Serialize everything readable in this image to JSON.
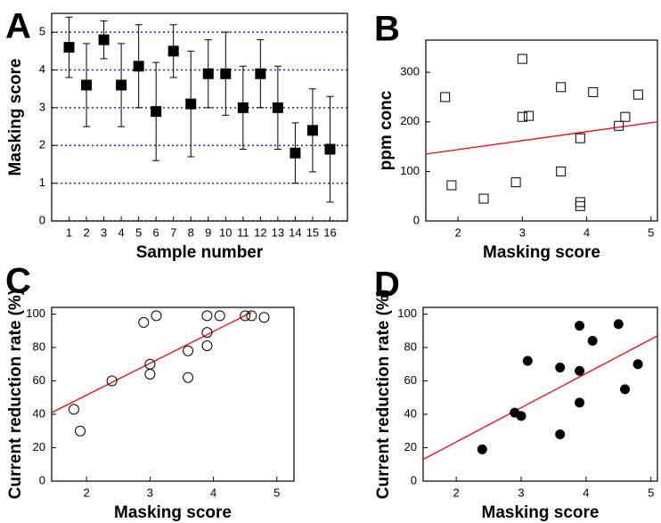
{
  "chart_data": [
    {
      "type": "errorbar",
      "panel_label": "A",
      "xlabel": "Sample number",
      "ylabel": "Masking score",
      "x": [
        1,
        2,
        3,
        4,
        5,
        6,
        7,
        8,
        9,
        10,
        11,
        12,
        13,
        14,
        15,
        16
      ],
      "values": [
        4.6,
        3.6,
        4.8,
        3.6,
        4.1,
        2.9,
        4.5,
        3.1,
        3.9,
        3.9,
        3.0,
        3.9,
        3.0,
        1.8,
        2.4,
        1.9
      ],
      "errors": [
        0.8,
        1.1,
        0.5,
        1.1,
        1.1,
        1.3,
        0.7,
        1.4,
        0.9,
        1.1,
        1.1,
        0.9,
        1.1,
        0.8,
        1.1,
        1.4
      ],
      "marker": "square-filled",
      "color": "#000000",
      "xlim": [
        0,
        17
      ],
      "xticks": [
        1,
        2,
        3,
        4,
        5,
        6,
        7,
        8,
        9,
        10,
        11,
        12,
        13,
        14,
        15,
        16
      ],
      "ylim": [
        0,
        5.5
      ],
      "yticks": [
        0,
        1,
        2,
        3,
        4,
        5
      ],
      "grid": true,
      "grid_color": "#2222cc"
    },
    {
      "type": "scatter",
      "panel_label": "B",
      "xlabel": "Masking score",
      "ylabel": "ppm conc",
      "x": [
        1.8,
        1.9,
        2.4,
        2.9,
        3.0,
        3.0,
        3.1,
        3.6,
        3.6,
        3.9,
        3.9,
        3.9,
        4.1,
        4.5,
        4.6,
        4.8
      ],
      "values": [
        250,
        72,
        45,
        78,
        327,
        210,
        212,
        270,
        100,
        167,
        38,
        30,
        260,
        192,
        210,
        255
      ],
      "marker": "square-open",
      "color": "#000000",
      "fit": {
        "x": [
          1.5,
          5.1
        ],
        "y": [
          135,
          200
        ],
        "color": "#ff0000"
      },
      "xlim": [
        1.5,
        5.1
      ],
      "xticks": [
        2,
        3,
        4,
        5
      ],
      "ylim": [
        0,
        365
      ],
      "yticks": [
        0,
        100,
        200,
        300
      ],
      "grid": false
    },
    {
      "type": "scatter",
      "panel_label": "C",
      "xlabel": "Masking score",
      "ylabel": "Current reduction rate (%)",
      "x": [
        1.8,
        1.9,
        2.4,
        2.9,
        3.0,
        3.0,
        3.1,
        3.6,
        3.6,
        3.9,
        3.9,
        3.9,
        4.1,
        4.5,
        4.6,
        4.8
      ],
      "values": [
        43,
        30,
        60,
        95,
        70,
        64,
        99,
        78,
        62,
        99,
        89,
        81,
        99,
        99,
        99,
        98
      ],
      "marker": "circle-open",
      "color": "#000000",
      "fit": {
        "x": [
          1.45,
          4.6
        ],
        "y": [
          41,
          101
        ],
        "color": "#ff0000"
      },
      "xlim": [
        1.45,
        5.27
      ],
      "xticks": [
        2,
        3,
        4,
        5
      ],
      "ylim": [
        0,
        104
      ],
      "yticks": [
        0,
        20,
        40,
        60,
        80,
        100
      ],
      "grid": false
    },
    {
      "type": "scatter",
      "panel_label": "D",
      "xlabel": "Masking score",
      "ylabel": "Current reduction rate (%)",
      "x": [
        2.4,
        2.9,
        3.0,
        3.1,
        3.6,
        3.6,
        3.9,
        3.9,
        3.9,
        4.1,
        4.5,
        4.6,
        4.8
      ],
      "values": [
        19,
        41,
        39,
        72,
        68,
        28,
        93,
        66,
        47,
        84,
        94,
        55,
        70
      ],
      "marker": "circle-filled",
      "color": "#000000",
      "fit": {
        "x": [
          1.49,
          5.1
        ],
        "y": [
          13,
          87
        ],
        "color": "#ff0000"
      },
      "xlim": [
        1.49,
        5.1
      ],
      "xticks": [
        2,
        3,
        4,
        5
      ],
      "ylim": [
        0,
        104
      ],
      "yticks": [
        0,
        20,
        40,
        60,
        80,
        100
      ],
      "grid": false
    }
  ]
}
